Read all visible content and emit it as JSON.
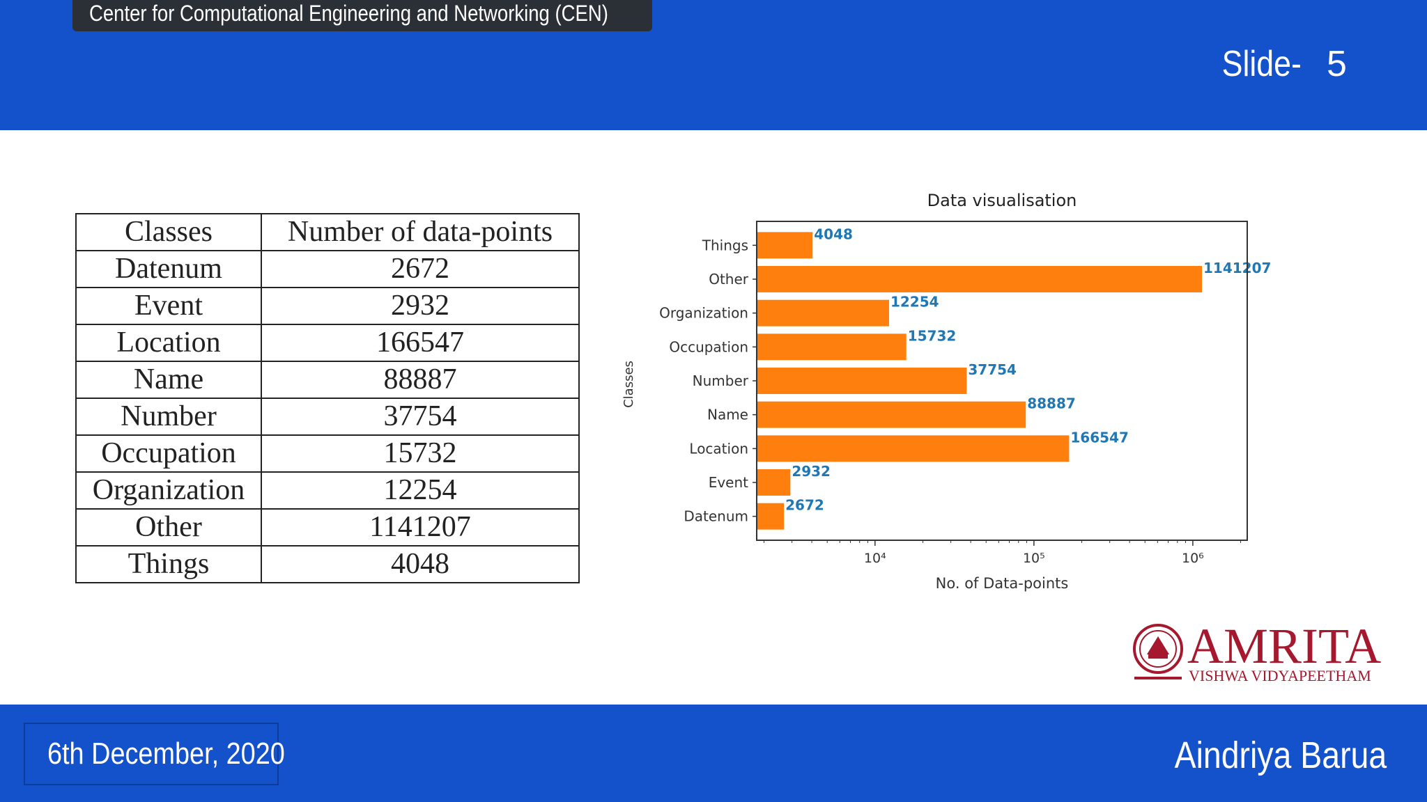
{
  "header": {
    "org": "Center for Computational Engineering and Networking (CEN)",
    "slide_label": "Slide-",
    "slide_number": "5"
  },
  "table": {
    "headers": [
      "Classes",
      "Number of data-points"
    ],
    "rows": [
      [
        "Datenum",
        "2672"
      ],
      [
        "Event",
        "2932"
      ],
      [
        "Location",
        "166547"
      ],
      [
        "Name",
        "88887"
      ],
      [
        "Number",
        "37754"
      ],
      [
        "Occupation",
        "15732"
      ],
      [
        "Organization",
        "12254"
      ],
      [
        "Other",
        "1141207"
      ],
      [
        "Things",
        "4048"
      ]
    ]
  },
  "chart_data": {
    "type": "bar",
    "orientation": "horizontal",
    "title": "Data visualisation",
    "xlabel": "No. of Data-points",
    "ylabel": "Classes",
    "xscale": "log",
    "xlim": [
      1800,
      2200000
    ],
    "xticks": [
      {
        "value": 10000,
        "label": "10⁴"
      },
      {
        "value": 100000,
        "label": "10⁵"
      },
      {
        "value": 1000000,
        "label": "10⁶"
      }
    ],
    "categories": [
      "Things",
      "Other",
      "Organization",
      "Occupation",
      "Number",
      "Name",
      "Location",
      "Event",
      "Datenum"
    ],
    "values": [
      4048,
      1141207,
      12254,
      15732,
      37754,
      88887,
      166547,
      2932,
      2672
    ],
    "bar_color": "#ff7f0e",
    "label_color": "#1f77b4",
    "grid": false
  },
  "logo": {
    "name": "AMRITA",
    "subtitle": "VISHWA VIDYAPEETHAM",
    "color": "#a5182e"
  },
  "footer": {
    "date": "6th December, 2020",
    "author": "Aindriya Barua"
  }
}
